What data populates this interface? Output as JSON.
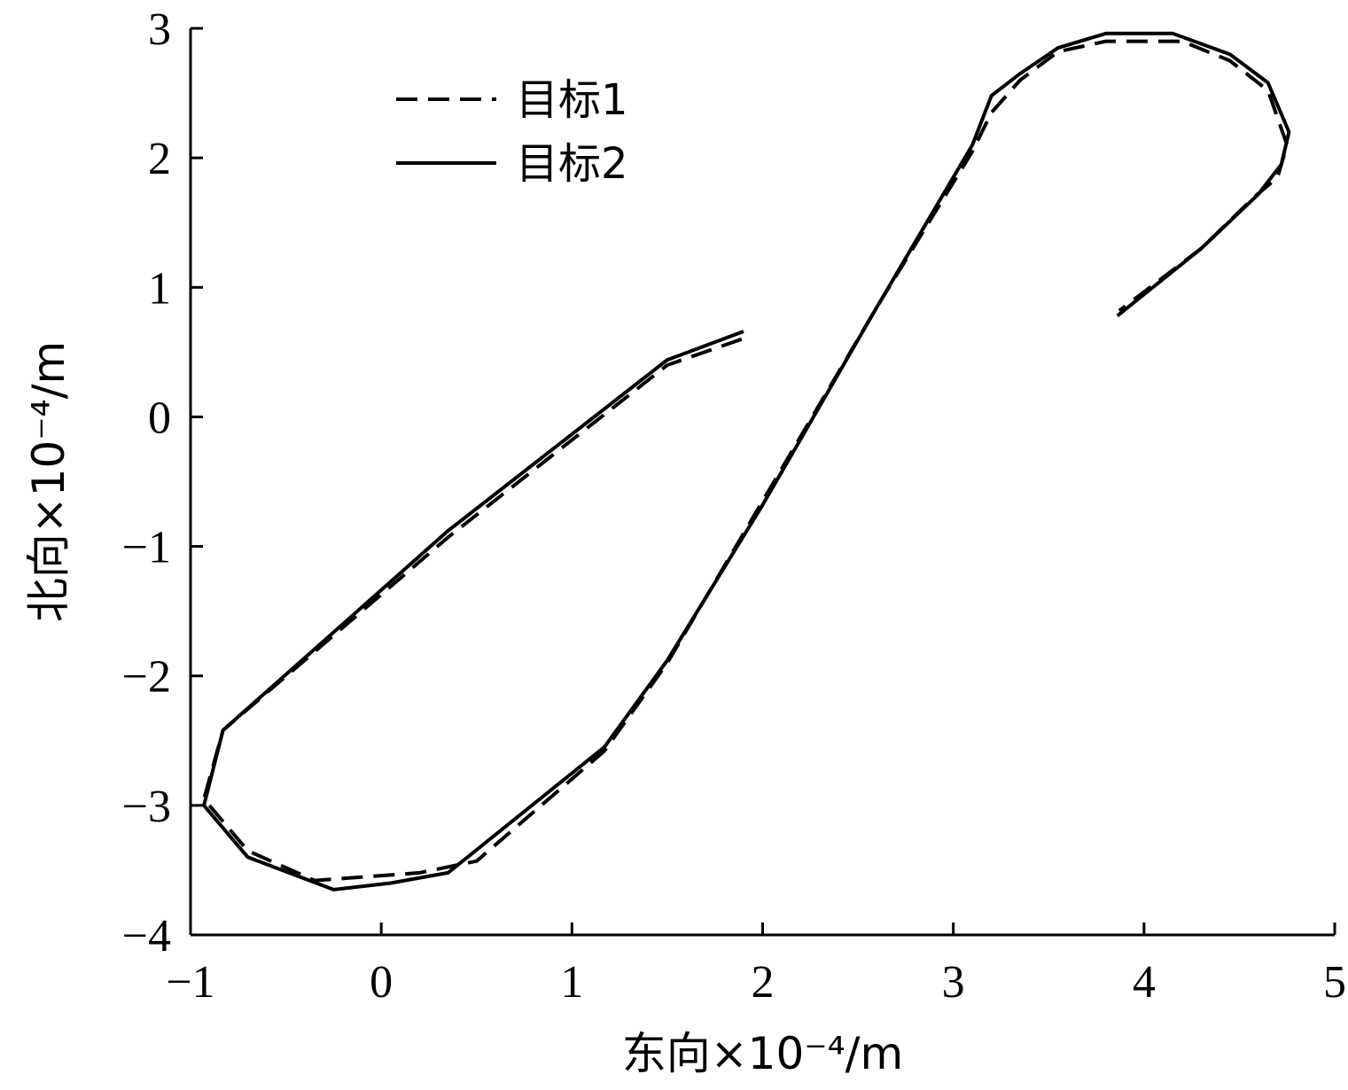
{
  "chart_data": {
    "type": "line",
    "xlabel": "东向×10⁻⁴/m",
    "ylabel": "北向×10⁻⁴/m",
    "xlim": [
      -1,
      5
    ],
    "ylim": [
      -4,
      3
    ],
    "xticks": [
      "−1",
      "0",
      "1",
      "2",
      "3",
      "4",
      "5"
    ],
    "yticks": [
      "−4",
      "−3",
      "−2",
      "−1",
      "0",
      "1",
      "2",
      "3"
    ],
    "grid": false,
    "legend_position": "top-left",
    "series": [
      {
        "name": "目标1",
        "style": "dashed",
        "color": "#000000",
        "x": [
          1.89,
          1.5,
          0.35,
          -0.83,
          -0.93,
          -0.7,
          -0.35,
          0.2,
          0.5,
          1.17,
          1.5,
          2.0,
          2.6,
          3.1,
          3.2,
          3.35,
          3.55,
          3.8,
          4.2,
          4.45,
          4.65,
          4.75,
          4.7,
          4.58,
          4.3,
          3.87
        ],
        "y": [
          0.6,
          0.4,
          -0.93,
          -2.42,
          -2.95,
          -3.35,
          -3.58,
          -3.52,
          -3.43,
          -2.58,
          -1.9,
          -0.65,
          0.85,
          2.05,
          2.35,
          2.6,
          2.82,
          2.9,
          2.9,
          2.75,
          2.52,
          2.1,
          1.85,
          1.7,
          1.3,
          0.82
        ]
      },
      {
        "name": "目标2",
        "style": "solid",
        "color": "#000000",
        "x": [
          1.9,
          1.5,
          0.35,
          -0.83,
          -0.93,
          -0.7,
          -0.25,
          0.05,
          0.35,
          1.17,
          1.5,
          2.0,
          2.6,
          3.1,
          3.2,
          3.35,
          3.55,
          3.8,
          4.15,
          4.45,
          4.65,
          4.76,
          4.72,
          4.6,
          4.3,
          3.86
        ],
        "y": [
          0.66,
          0.44,
          -0.88,
          -2.42,
          -3.0,
          -3.4,
          -3.65,
          -3.6,
          -3.52,
          -2.55,
          -1.88,
          -0.68,
          0.85,
          2.1,
          2.48,
          2.65,
          2.85,
          2.96,
          2.96,
          2.8,
          2.58,
          2.2,
          1.95,
          1.72,
          1.3,
          0.78
        ]
      }
    ]
  }
}
